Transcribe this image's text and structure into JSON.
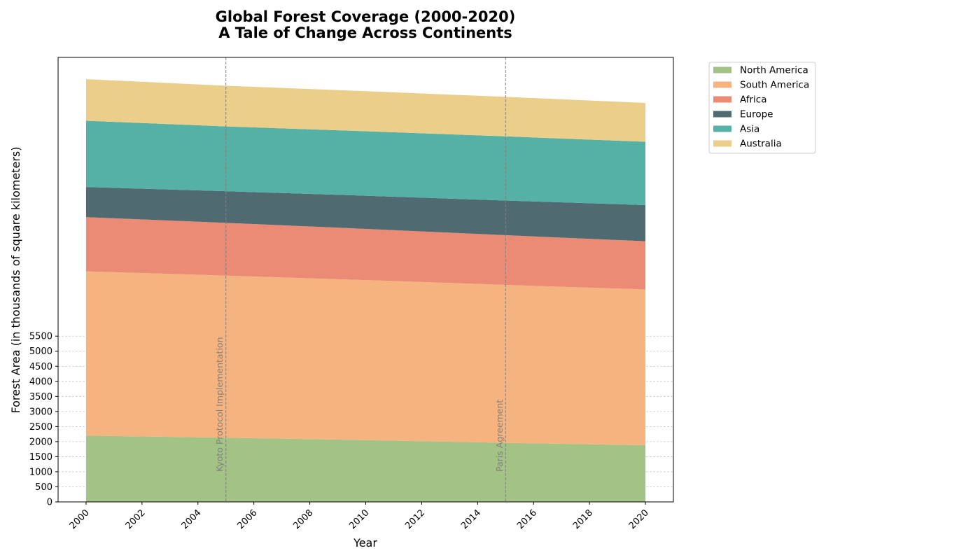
{
  "chart_data": {
    "type": "area",
    "stacked": true,
    "title_lines": [
      "Global Forest Coverage (2000-2020)",
      "A Tale of Change Across Continents"
    ],
    "xlabel": "Year",
    "ylabel": "Forest Area (in thousands of square kilometers)",
    "x": [
      2000,
      2005,
      2010,
      2015,
      2020
    ],
    "x_ticks": [
      "2000",
      "2002",
      "2004",
      "2006",
      "2008",
      "2010",
      "2012",
      "2014",
      "2016",
      "2018",
      "2020"
    ],
    "y_ticks": [
      "0",
      "500",
      "1000",
      "1500",
      "2000",
      "2500",
      "3000",
      "3500",
      "4000",
      "4500",
      "5000",
      "5500"
    ],
    "xlim": [
      1999,
      2021
    ],
    "ylim": [
      0,
      14750
    ],
    "grid": "horizontal dashed",
    "legend_position": "outside-top-right",
    "series": [
      {
        "name": "North America",
        "color": "#a3c285",
        "values": [
          2200,
          2130,
          2050,
          1960,
          1880
        ]
      },
      {
        "name": "South America",
        "color": "#f5b47f",
        "values": [
          5450,
          5380,
          5310,
          5240,
          5170
        ]
      },
      {
        "name": "Africa",
        "color": "#ec8b75",
        "values": [
          1800,
          1750,
          1700,
          1650,
          1600
        ]
      },
      {
        "name": "Europe",
        "color": "#506a72",
        "values": [
          1000,
          1050,
          1100,
          1150,
          1200
        ]
      },
      {
        "name": "Asia",
        "color": "#55b0a6",
        "values": [
          2200,
          2150,
          2140,
          2130,
          2100
        ]
      },
      {
        "name": "Australia",
        "color": "#ebce8a",
        "values": [
          1380,
          1350,
          1330,
          1310,
          1290
        ]
      }
    ],
    "annotations": [
      {
        "x": 2005,
        "label": "Kyoto Protocol Implementation"
      },
      {
        "x": 2015,
        "label": "Paris Agreement"
      }
    ]
  }
}
